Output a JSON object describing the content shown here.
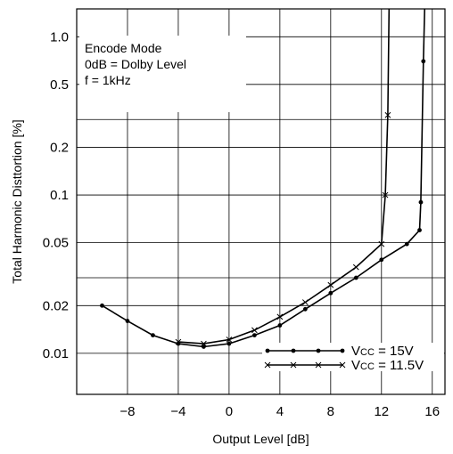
{
  "chart_data": {
    "type": "line",
    "xlabel": "Output Level [dB]",
    "ylabel": "Total Harmonic Disttortion [%]",
    "y_scale": "log",
    "xlim": [
      -12,
      17
    ],
    "ylim": [
      0.0055,
      1.5
    ],
    "grid": true,
    "x_ticks": [
      -8,
      -4,
      0,
      4,
      8,
      12,
      16
    ],
    "x_tick_labels": [
      "−8",
      "−4",
      "0",
      "4",
      "8",
      "12",
      "16"
    ],
    "y_ticks": [
      0.01,
      0.02,
      0.05,
      0.1,
      0.2,
      0.5,
      1.0
    ],
    "y_tick_labels": [
      "0.01",
      "0.02",
      "0.05",
      "0.1",
      "0.2",
      "0.5",
      "1.0"
    ],
    "annotation_lines": [
      "Encode Mode",
      "0dB = Dolby Level",
      "f = 1kHz"
    ],
    "legend_position": "bottom-right",
    "series": [
      {
        "name": "VCC = 15V",
        "legend_main": "V",
        "legend_sub": "CC",
        "legend_rest": " = 15V",
        "marker": "dot",
        "x": [
          -10,
          -8,
          -6,
          -4,
          -2,
          0,
          2,
          4,
          6,
          8,
          10,
          12,
          14,
          15,
          15.1,
          15.3,
          15.4
        ],
        "y": [
          0.02,
          0.016,
          0.013,
          0.0115,
          0.011,
          0.0115,
          0.013,
          0.015,
          0.019,
          0.024,
          0.03,
          0.039,
          0.049,
          0.06,
          0.09,
          0.7,
          1.5
        ]
      },
      {
        "name": "VCC = 11.5V",
        "legend_main": "V",
        "legend_sub": "CC",
        "legend_rest": " = 11.5V",
        "marker": "cross",
        "x": [
          -4,
          -2,
          0,
          2,
          4,
          6,
          8,
          10,
          12,
          12.3,
          12.5,
          12.6
        ],
        "y": [
          0.0118,
          0.0115,
          0.0122,
          0.014,
          0.017,
          0.021,
          0.027,
          0.035,
          0.049,
          0.1,
          0.32,
          1.5
        ]
      }
    ]
  }
}
